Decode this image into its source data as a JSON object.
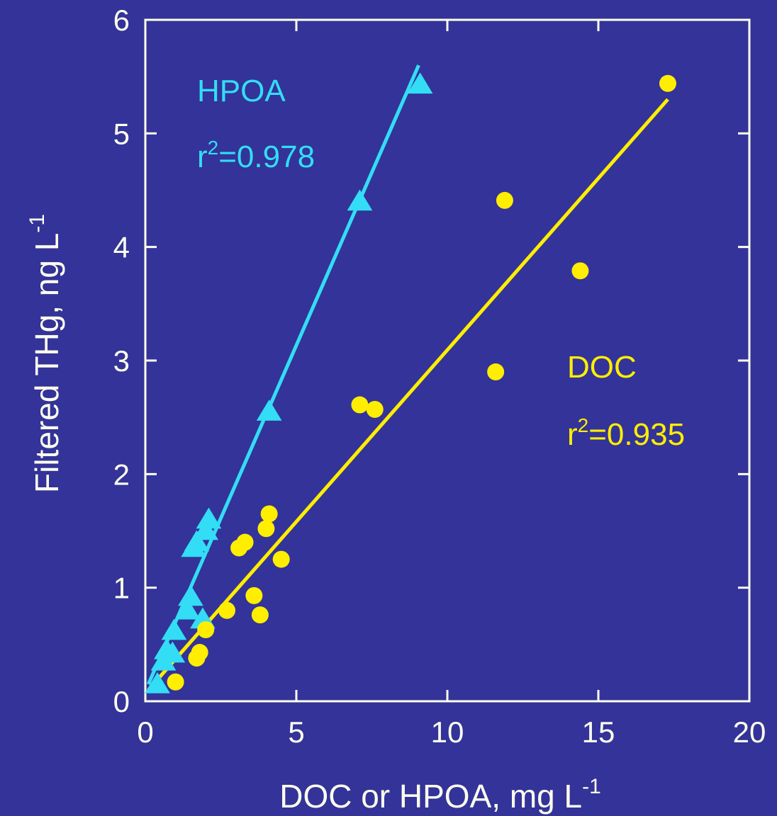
{
  "colors": {
    "background": "#333399",
    "axis": "#ffffee",
    "hpoa": "#33ddf5",
    "doc": "#ffee00"
  },
  "chart_data": {
    "type": "scatter",
    "title": "",
    "xlabel": "DOC or HPOA, mg L",
    "xlabel_sup": "-1",
    "ylabel": "Filtered THg, ng L",
    "ylabel_sup": "-1",
    "xlim": [
      0,
      20
    ],
    "ylim": [
      0,
      6
    ],
    "xticks": [
      0,
      5,
      10,
      15,
      20
    ],
    "yticks": [
      0,
      1,
      2,
      3,
      4,
      5,
      6
    ],
    "grid": false,
    "series": [
      {
        "name": "HPOA",
        "marker": "triangle",
        "color": "#33ddf5",
        "r2_text": "=0.978",
        "r2_prefix": "r",
        "r2_sup": "2",
        "points": [
          [
            0.4,
            0.15
          ],
          [
            0.6,
            0.35
          ],
          [
            0.7,
            0.45
          ],
          [
            0.9,
            0.42
          ],
          [
            0.95,
            0.62
          ],
          [
            1.4,
            0.8
          ],
          [
            1.5,
            0.92
          ],
          [
            1.6,
            1.35
          ],
          [
            1.7,
            1.4
          ],
          [
            1.9,
            0.72
          ],
          [
            2.0,
            1.5
          ],
          [
            2.1,
            1.6
          ],
          [
            4.1,
            2.55
          ],
          [
            7.1,
            4.4
          ],
          [
            9.1,
            5.43
          ]
        ],
        "fit": [
          [
            0.1,
            0.15
          ],
          [
            9.05,
            5.6
          ]
        ]
      },
      {
        "name": "DOC",
        "marker": "circle",
        "color": "#ffee00",
        "r2_text": "=0.935",
        "r2_prefix": "r",
        "r2_sup": "2",
        "points": [
          [
            1.0,
            0.17
          ],
          [
            1.7,
            0.38
          ],
          [
            1.8,
            0.43
          ],
          [
            2.0,
            0.63
          ],
          [
            2.7,
            0.8
          ],
          [
            3.1,
            1.35
          ],
          [
            3.3,
            1.4
          ],
          [
            3.6,
            0.93
          ],
          [
            3.8,
            0.76
          ],
          [
            4.0,
            1.52
          ],
          [
            4.1,
            1.65
          ],
          [
            4.5,
            1.25
          ],
          [
            7.1,
            2.61
          ],
          [
            7.6,
            2.57
          ],
          [
            11.6,
            2.9
          ],
          [
            11.9,
            4.41
          ],
          [
            14.4,
            3.79
          ],
          [
            17.3,
            5.44
          ]
        ],
        "fit": [
          [
            0.1,
            0.1
          ],
          [
            17.3,
            5.3
          ]
        ]
      }
    ]
  }
}
